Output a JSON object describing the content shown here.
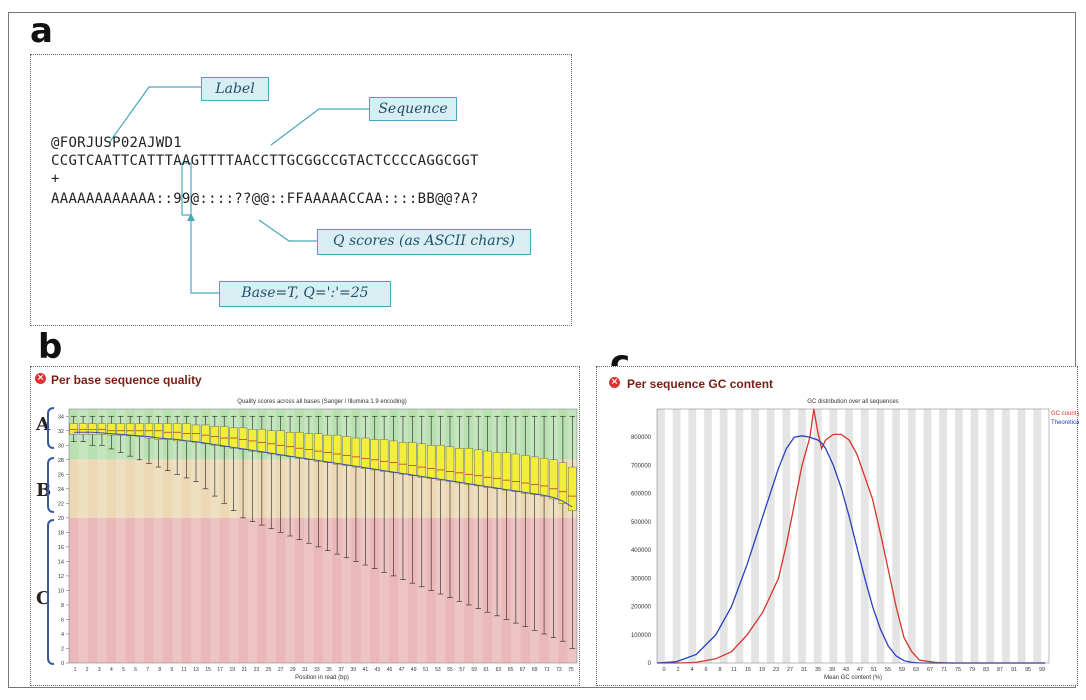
{
  "panels": {
    "a": {
      "letter": "a",
      "label_callout": "Label",
      "sequence_callout": "Sequence",
      "qscores_callout": "Q scores (as ASCII chars)",
      "base_callout": "Base=T, Q=':'=25",
      "lines": [
        "@FORJUSP02AJWD1",
        "CCGTCAATTCATTTAAGTTTTAACCTTGCGGCCGTACTCCCCAGGCGGT",
        "+",
        "AAAAAAAAAAAA::99@::::??@@::FFAAAAACCAA::::BB@@?A?"
      ]
    },
    "b": {
      "letter": "b",
      "title": "Per base sequence quality",
      "region_labels": [
        "A",
        "B",
        "C"
      ],
      "chart_title": "Quality scores across all bases (Sanger / Illumina 1.9 encoding)",
      "xlabel": "Position in read (bp)"
    },
    "c": {
      "letter": "c",
      "title": "Per sequence GC content",
      "chart_title": "GC distribution over all sequences",
      "xlabel": "Mean GC content (%)"
    }
  },
  "chart_data": [
    {
      "type": "box",
      "title": "Quality scores across all bases (Sanger / Illumina 1.9 encoding)",
      "xlabel": "Position in read (bp)",
      "ylabel": "",
      "ylim": [
        0,
        35
      ],
      "yticks": [
        0,
        2,
        4,
        6,
        8,
        10,
        12,
        14,
        16,
        18,
        20,
        22,
        24,
        26,
        28,
        30,
        32,
        34
      ],
      "xtick_labels": [
        "1",
        "2",
        "3",
        "4",
        "5",
        "6",
        "7",
        "8",
        "9",
        "11",
        "13",
        "15",
        "17",
        "19",
        "21",
        "23",
        "25",
        "27",
        "29",
        "31",
        "33",
        "35",
        "37",
        "39",
        "41",
        "43",
        "45",
        "47",
        "49",
        "51",
        "53",
        "55",
        "57",
        "59",
        "61",
        "63",
        "65",
        "67",
        "69",
        "71",
        "73",
        "75"
      ],
      "quality_bands": [
        {
          "name": "good",
          "from": 28,
          "to": 35,
          "color": "#b9e0b0"
        },
        {
          "name": "reasonable",
          "from": 20,
          "to": 28,
          "color": "#ecd8b4"
        },
        {
          "name": "poor",
          "from": 0,
          "to": 20,
          "color": "#eab8b8"
        }
      ],
      "box_color": "#f2ee3a",
      "mean_line_color": "#3b4ea8",
      "positions": 54,
      "q1": [
        31.5,
        31.5,
        31.5,
        31.5,
        31.4,
        31.4,
        31.3,
        31.2,
        31.0,
        30.8,
        30.8,
        30.6,
        30.6,
        30.4,
        30.2,
        30.0,
        29.8,
        29.6,
        29.4,
        29.2,
        29.0,
        28.8,
        28.6,
        28.4,
        28.2,
        28.0,
        27.8,
        27.6,
        27.4,
        27.2,
        27.0,
        26.8,
        26.6,
        26.4,
        26.2,
        26.0,
        25.8,
        25.6,
        25.4,
        25.2,
        25.0,
        24.8,
        24.6,
        24.4,
        24.2,
        24.0,
        23.8,
        23.6,
        23.4,
        23.2,
        23.0,
        22.6,
        22.0,
        21.0
      ],
      "median": [
        32.2,
        32.2,
        32.2,
        32.2,
        32.0,
        32.0,
        32.0,
        32.0,
        32.0,
        32.0,
        31.8,
        31.8,
        31.6,
        31.6,
        31.4,
        31.2,
        31.0,
        31.0,
        30.8,
        30.6,
        30.4,
        30.2,
        30.0,
        29.8,
        29.6,
        29.4,
        29.2,
        29.0,
        28.8,
        28.6,
        28.4,
        28.2,
        28.0,
        27.8,
        27.6,
        27.4,
        27.2,
        27.0,
        26.8,
        26.6,
        26.4,
        26.2,
        26.0,
        25.8,
        25.6,
        25.4,
        25.2,
        25.0,
        24.8,
        24.6,
        24.4,
        24.0,
        23.6,
        23.0
      ],
      "q3": [
        33.0,
        33.0,
        33.0,
        33.0,
        33.0,
        33.0,
        33.0,
        33.0,
        33.0,
        33.0,
        33.0,
        33.0,
        33.0,
        32.8,
        32.8,
        32.6,
        32.6,
        32.4,
        32.4,
        32.2,
        32.2,
        32.0,
        32.0,
        31.8,
        31.8,
        31.6,
        31.6,
        31.4,
        31.4,
        31.2,
        31.0,
        31.0,
        30.8,
        30.8,
        30.6,
        30.4,
        30.4,
        30.2,
        30.0,
        30.0,
        29.8,
        29.6,
        29.6,
        29.4,
        29.2,
        29.0,
        29.0,
        28.8,
        28.6,
        28.4,
        28.2,
        28.0,
        27.6,
        27.0
      ],
      "whisker_low": [
        30.5,
        30.5,
        30.0,
        30.0,
        29.5,
        29.0,
        28.5,
        28.0,
        27.5,
        27.0,
        26.5,
        26.0,
        25.5,
        25.0,
        24.0,
        23.0,
        22.0,
        21.0,
        20.0,
        19.5,
        19.0,
        18.5,
        18.0,
        17.5,
        17.0,
        16.5,
        16.0,
        15.5,
        15.0,
        14.5,
        14.0,
        13.5,
        13.0,
        12.5,
        12.0,
        11.5,
        11.0,
        10.5,
        10.0,
        9.5,
        9.0,
        8.5,
        8.0,
        7.5,
        7.0,
        6.5,
        6.0,
        5.5,
        5.0,
        4.5,
        4.0,
        3.5,
        3.0,
        2.0
      ],
      "whisker_high": [
        34,
        34,
        34,
        34,
        34,
        34,
        34,
        34,
        34,
        34,
        34,
        34,
        34,
        34,
        34,
        34,
        34,
        34,
        34,
        34,
        34,
        34,
        34,
        34,
        34,
        34,
        34,
        34,
        34,
        34,
        34,
        34,
        34,
        34,
        34,
        34,
        34,
        34,
        34,
        34,
        34,
        34,
        34,
        34,
        34,
        34,
        34,
        34,
        34,
        34,
        34,
        34,
        34,
        34
      ],
      "mean": [
        31.8,
        31.8,
        31.8,
        31.7,
        31.6,
        31.5,
        31.4,
        31.3,
        31.2,
        31.0,
        30.9,
        30.8,
        30.6,
        30.5,
        30.3,
        30.1,
        29.9,
        29.7,
        29.5,
        29.3,
        29.1,
        28.9,
        28.7,
        28.5,
        28.3,
        28.1,
        27.9,
        27.7,
        27.5,
        27.3,
        27.1,
        26.9,
        26.7,
        26.5,
        26.3,
        26.1,
        25.9,
        25.7,
        25.5,
        25.3,
        25.1,
        24.9,
        24.7,
        24.5,
        24.3,
        24.1,
        23.9,
        23.7,
        23.5,
        23.3,
        23.1,
        22.8,
        22.3,
        21.5
      ]
    },
    {
      "type": "line",
      "title": "GC distribution over all sequences",
      "xlabel": "Mean GC content (%)",
      "ylabel": "",
      "ylim": [
        0,
        900000
      ],
      "yticks": [
        0,
        100000,
        200000,
        300000,
        400000,
        500000,
        600000,
        700000,
        800000
      ],
      "xtick_labels": [
        "0",
        "2",
        "4",
        "6",
        "8",
        "11",
        "15",
        "19",
        "23",
        "27",
        "31",
        "35",
        "39",
        "43",
        "47",
        "51",
        "55",
        "59",
        "63",
        "67",
        "71",
        "75",
        "79",
        "83",
        "87",
        "91",
        "95",
        "99"
      ],
      "legend_position": "top-right",
      "x": [
        0,
        5,
        10,
        15,
        19,
        23,
        27,
        31,
        33,
        35,
        37,
        39,
        40,
        41,
        42,
        43,
        45,
        47,
        49,
        51,
        53,
        55,
        57,
        59,
        61,
        63,
        65,
        67,
        71,
        75,
        79,
        83,
        87,
        91,
        95,
        99
      ],
      "series": [
        {
          "name": "GC count per read",
          "color": "#d9332b",
          "values": [
            0,
            0,
            2000,
            15000,
            40000,
            100000,
            180000,
            300000,
            420000,
            560000,
            700000,
            800000,
            900000,
            820000,
            760000,
            790000,
            810000,
            810000,
            790000,
            740000,
            660000,
            580000,
            460000,
            330000,
            200000,
            90000,
            40000,
            10000,
            2000,
            0,
            0,
            0,
            0,
            0,
            0,
            0
          ]
        },
        {
          "name": "Theoretical Distribution",
          "color": "#2a3fbf",
          "values": [
            0,
            5000,
            30000,
            100000,
            200000,
            350000,
            520000,
            690000,
            760000,
            800000,
            805000,
            800000,
            795000,
            790000,
            780000,
            760000,
            700000,
            620000,
            520000,
            410000,
            300000,
            200000,
            120000,
            60000,
            25000,
            8000,
            2000,
            500,
            0,
            0,
            0,
            0,
            0,
            0,
            0,
            0
          ]
        }
      ]
    }
  ]
}
